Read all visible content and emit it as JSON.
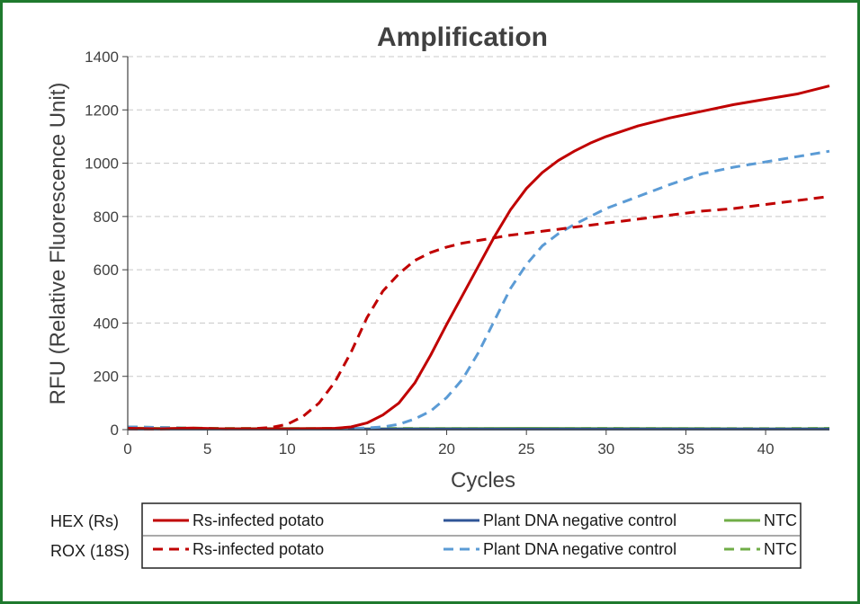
{
  "chart_data": {
    "type": "line",
    "title": "Amplification",
    "xlabel": "Cycles",
    "ylabel": "RFU (Relative Fluorescence Unit)",
    "xlim": [
      0,
      44
    ],
    "ylim": [
      0,
      1400
    ],
    "xticks": [
      0,
      5,
      10,
      15,
      20,
      25,
      30,
      35,
      40
    ],
    "yticks": [
      0,
      200,
      400,
      600,
      800,
      1000,
      1200,
      1400
    ],
    "grid": "horizontal dashed",
    "legend_rows": [
      "HEX (Rs)",
      "ROX (18S)"
    ],
    "legend_columns": [
      "Rs-infected potato",
      "Plant DNA negative control",
      "NTC"
    ],
    "series": [
      {
        "name": "Rs-infected potato",
        "dye": "HEX (Rs)",
        "color": "#c00000",
        "dash": "solid",
        "x": [
          0,
          2,
          4,
          6,
          8,
          10,
          12,
          13,
          14,
          15,
          16,
          17,
          18,
          19,
          20,
          21,
          22,
          23,
          24,
          25,
          26,
          27,
          28,
          29,
          30,
          32,
          34,
          36,
          38,
          40,
          42,
          44
        ],
        "y": [
          5,
          3,
          6,
          3,
          3,
          3,
          4,
          5,
          10,
          25,
          55,
          100,
          175,
          280,
          395,
          505,
          615,
          725,
          825,
          905,
          965,
          1010,
          1045,
          1075,
          1100,
          1140,
          1170,
          1195,
          1220,
          1240,
          1260,
          1290
        ]
      },
      {
        "name": "Plant DNA negative control",
        "dye": "HEX (Rs)",
        "color": "#2f5597",
        "dash": "solid",
        "x": [
          0,
          44
        ],
        "y": [
          2,
          2
        ]
      },
      {
        "name": "NTC",
        "dye": "HEX (Rs)",
        "color": "#70ad47",
        "dash": "solid",
        "x": [
          0,
          5,
          10,
          15,
          20,
          25,
          30,
          35,
          40,
          44
        ],
        "y": [
          6,
          3,
          4,
          3,
          4,
          5,
          4,
          4,
          3,
          4
        ]
      },
      {
        "name": "Rs-infected potato",
        "dye": "ROX (18S)",
        "color": "#c00000",
        "dash": "dashed",
        "x": [
          0,
          2,
          4,
          6,
          8,
          9,
          10,
          11,
          12,
          13,
          14,
          15,
          16,
          17,
          18,
          19,
          20,
          21,
          22,
          23,
          24,
          25,
          26,
          27,
          28,
          30,
          32,
          34,
          36,
          38,
          40,
          42,
          44
        ],
        "y": [
          3,
          2,
          5,
          3,
          4,
          8,
          20,
          50,
          100,
          180,
          290,
          420,
          520,
          585,
          635,
          665,
          685,
          700,
          710,
          720,
          730,
          737,
          745,
          752,
          760,
          775,
          790,
          805,
          820,
          830,
          845,
          860,
          875
        ]
      },
      {
        "name": "Plant DNA negative control",
        "dye": "ROX (18S)",
        "color": "#5b9bd5",
        "dash": "dashed",
        "x": [
          0,
          2,
          4,
          6,
          8,
          10,
          12,
          14,
          15,
          16,
          17,
          18,
          19,
          20,
          21,
          22,
          23,
          24,
          25,
          26,
          27,
          28,
          29,
          30,
          32,
          34,
          36,
          38,
          40,
          42,
          44
        ],
        "y": [
          10,
          8,
          5,
          3,
          3,
          3,
          3,
          4,
          6,
          10,
          20,
          40,
          70,
          120,
          190,
          290,
          410,
          530,
          620,
          690,
          735,
          770,
          800,
          830,
          875,
          920,
          960,
          985,
          1005,
          1025,
          1045
        ]
      },
      {
        "name": "NTC",
        "dye": "ROX (18S)",
        "color": "#70ad47",
        "dash": "dashed",
        "x": [
          0,
          5,
          10,
          15,
          20,
          25,
          30,
          35,
          40,
          44
        ],
        "y": [
          10,
          5,
          4,
          5,
          4,
          4,
          5,
          4,
          4,
          5
        ]
      }
    ]
  }
}
